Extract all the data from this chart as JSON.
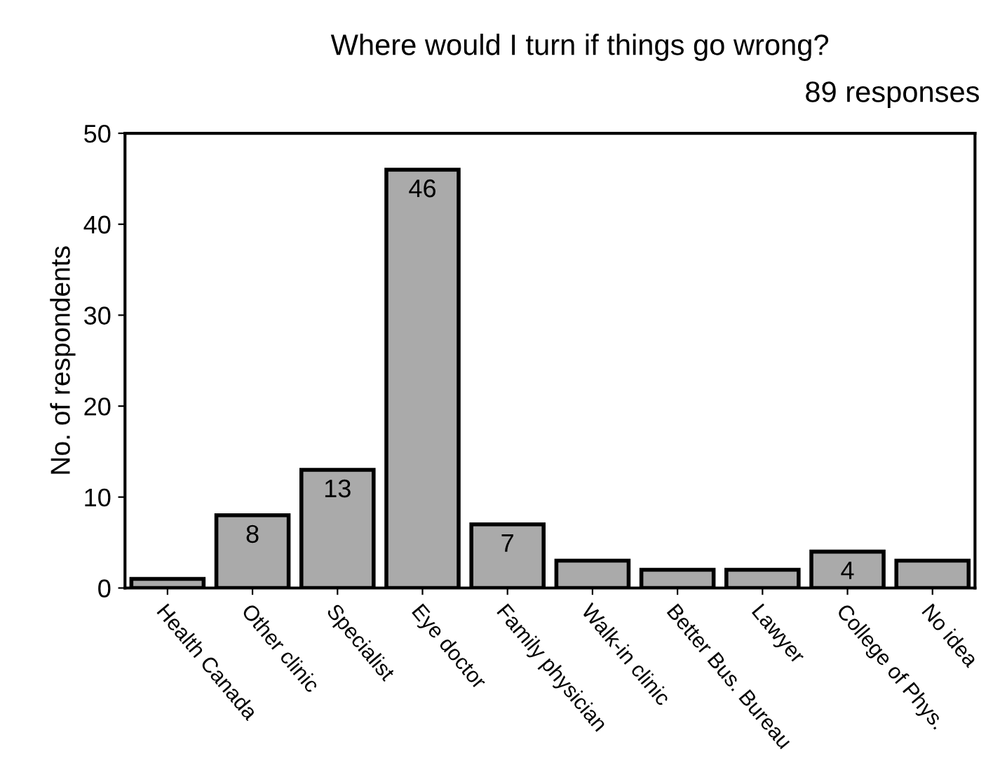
{
  "chart_data": {
    "type": "bar",
    "title": "Where would I turn if things go wrong?",
    "subtitle": "89 responses",
    "ylabel": "No. of respondents",
    "categories": [
      "Health Canada",
      "Other clinic",
      "Specialist",
      "Eye doctor",
      "Family physician",
      "Walk-in clinic",
      "Better Bus. Bureau",
      "Lawyer",
      "College of Phys.",
      "No idea"
    ],
    "values": [
      1,
      8,
      13,
      46,
      7,
      3,
      2,
      2,
      4,
      3
    ],
    "value_labels": [
      null,
      "8",
      "13",
      "46",
      "7",
      null,
      null,
      null,
      "4",
      null
    ],
    "color": "#aaaaaa",
    "ylim": [
      0,
      50
    ],
    "yticks": [
      0,
      10,
      20,
      30,
      40,
      50
    ],
    "grid": false,
    "legend": false
  }
}
